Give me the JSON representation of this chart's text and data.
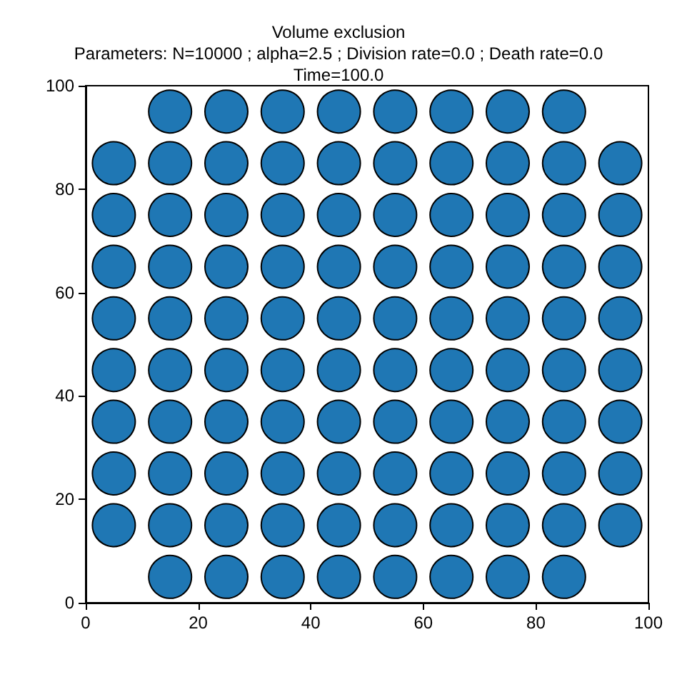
{
  "chart_data": {
    "type": "scatter",
    "title": "Volume exclusion\nParameters: N=10000 ; alpha=2.5 ; Division rate=0.0 ; Death rate=0.0\nTime=100.0",
    "xlim": [
      0,
      100
    ],
    "ylim": [
      0,
      100
    ],
    "xticks": [
      0,
      20,
      40,
      60,
      80,
      100
    ],
    "yticks": [
      0,
      20,
      40,
      60,
      80,
      100
    ],
    "grid": false,
    "marker": "circle",
    "series": [
      {
        "color": "#1f77b4",
        "x": [
          5,
          5,
          5,
          5,
          5,
          5,
          5,
          5,
          15,
          15,
          15,
          15,
          15,
          15,
          15,
          15,
          15,
          15,
          25,
          25,
          25,
          25,
          25,
          25,
          25,
          25,
          25,
          25,
          35,
          35,
          35,
          35,
          35,
          35,
          35,
          35,
          35,
          35,
          45,
          45,
          45,
          45,
          45,
          45,
          45,
          45,
          45,
          45,
          55,
          55,
          55,
          55,
          55,
          55,
          55,
          55,
          55,
          55,
          65,
          65,
          65,
          65,
          65,
          65,
          65,
          65,
          65,
          65,
          75,
          75,
          75,
          75,
          75,
          75,
          75,
          75,
          75,
          75,
          85,
          85,
          85,
          85,
          85,
          85,
          85,
          85,
          85,
          85,
          95,
          95,
          95,
          95,
          95,
          95,
          95,
          95
        ],
        "values": [
          15,
          25,
          35,
          45,
          55,
          65,
          75,
          85,
          5,
          15,
          25,
          35,
          45,
          55,
          65,
          75,
          85,
          95,
          5,
          15,
          25,
          35,
          45,
          55,
          65,
          75,
          85,
          95,
          5,
          15,
          25,
          35,
          45,
          55,
          65,
          75,
          85,
          95,
          5,
          15,
          25,
          35,
          45,
          55,
          65,
          75,
          85,
          95,
          5,
          15,
          25,
          35,
          45,
          55,
          65,
          75,
          85,
          95,
          5,
          15,
          25,
          35,
          45,
          55,
          65,
          75,
          85,
          95,
          5,
          15,
          25,
          35,
          45,
          55,
          65,
          75,
          85,
          95,
          5,
          15,
          25,
          35,
          45,
          55,
          65,
          75,
          85,
          95,
          15,
          25,
          35,
          45,
          55,
          65,
          75,
          85
        ]
      }
    ]
  }
}
